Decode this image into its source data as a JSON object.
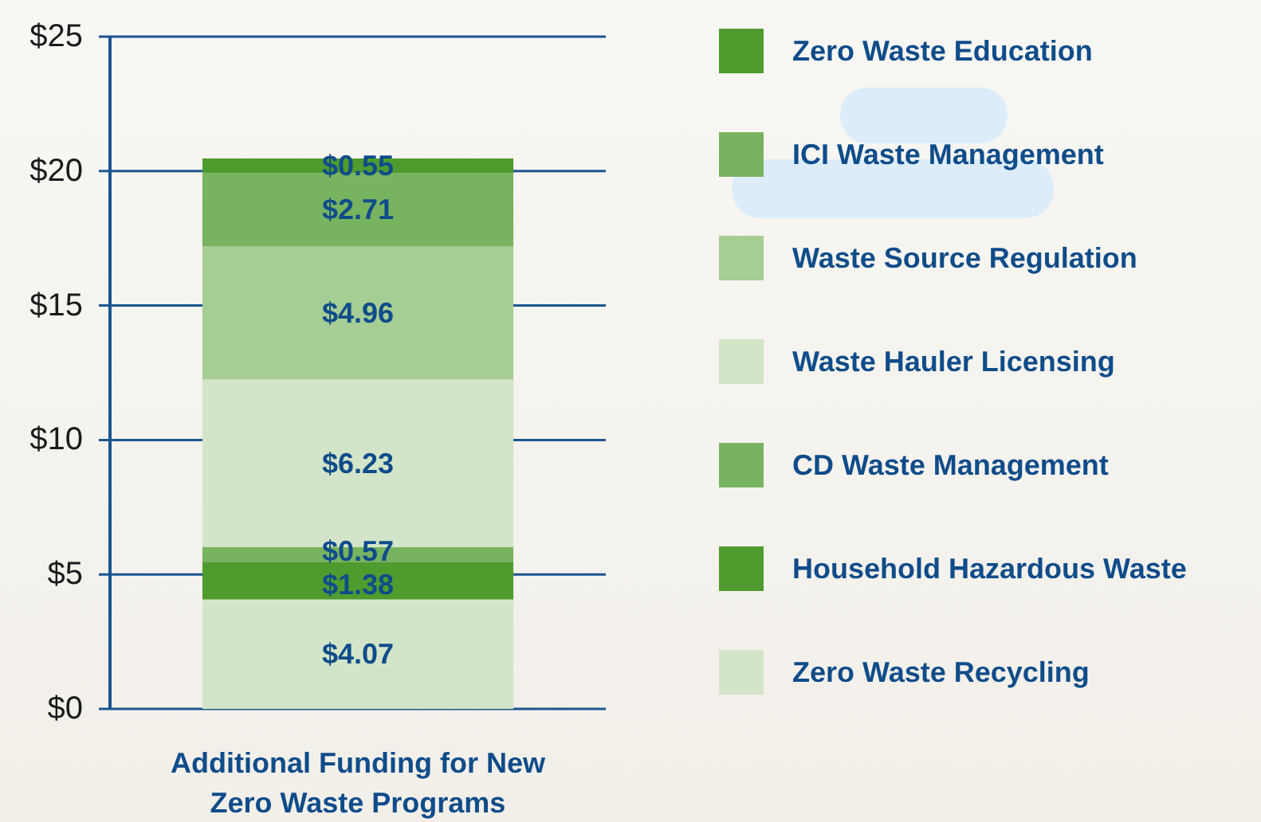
{
  "chart_data": {
    "type": "bar",
    "stacked": true,
    "categories": [
      "Additional Funding for New Zero Waste Programs"
    ],
    "series": [
      {
        "name": "Zero Waste Recycling",
        "color": "#d3e5c8",
        "values": [
          4.07
        ],
        "value_labels": [
          "$4.07"
        ]
      },
      {
        "name": "Household Hazardous Waste",
        "color": "#4f9c2e",
        "values": [
          1.38
        ],
        "value_labels": [
          "$1.38"
        ]
      },
      {
        "name": "CD Waste Management",
        "color": "#78b360",
        "values": [
          0.57
        ],
        "value_labels": [
          "$0.57"
        ]
      },
      {
        "name": "Waste Hauler Licensing",
        "color": "#d3e5c8",
        "values": [
          6.23
        ],
        "value_labels": [
          "$6.23"
        ]
      },
      {
        "name": "Waste Source Regulation",
        "color": "#a6cd94",
        "values": [
          4.96
        ],
        "value_labels": [
          "$4.96"
        ]
      },
      {
        "name": "ICI Waste Management",
        "color": "#78b360",
        "values": [
          2.71
        ],
        "value_labels": [
          "$2.71"
        ]
      },
      {
        "name": "Zero Waste Education",
        "color": "#4f9c2e",
        "values": [
          0.55
        ],
        "value_labels": [
          "$0.55"
        ]
      }
    ],
    "ylim": [
      0,
      25
    ],
    "yticks": [
      {
        "value": 0,
        "label": "$0"
      },
      {
        "value": 5,
        "label": "$5"
      },
      {
        "value": 10,
        "label": "$10"
      },
      {
        "value": 15,
        "label": "$15"
      },
      {
        "value": 20,
        "label": "$20"
      },
      {
        "value": 25,
        "label": "$25"
      }
    ],
    "grid": "y",
    "legend": "right"
  }
}
